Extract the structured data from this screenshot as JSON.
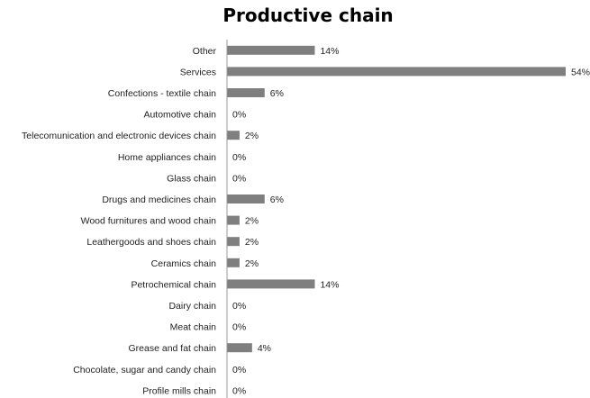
{
  "chart_data": {
    "type": "bar",
    "orientation": "horizontal",
    "title": "Productive chain",
    "xlabel": "",
    "ylabel": "",
    "xlim": [
      0,
      54
    ],
    "grid": false,
    "legend": "none",
    "bar_color": "#7f7f7f",
    "categories": [
      "Other",
      "Services",
      "Confections - textile chain",
      "Automotive chain",
      "Telecomunication and electronic devices chain",
      "Home appliances chain",
      "Glass chain",
      "Drugs and medicines chain",
      "Wood furnitures and wood chain",
      "Leathergoods and shoes chain",
      "Ceramics chain",
      "Petrochemical chain",
      "Dairy chain",
      "Meat chain",
      "Grease and fat chain",
      "Chocolate, sugar and candy chain",
      "Profile mills chain"
    ],
    "values": [
      14,
      54,
      6,
      0,
      2,
      0,
      0,
      6,
      2,
      2,
      2,
      14,
      0,
      0,
      4,
      0,
      0
    ],
    "value_labels": [
      "14%",
      "54%",
      "6%",
      "0%",
      "2%",
      "0%",
      "0%",
      "6%",
      "2%",
      "2%",
      "2%",
      "14%",
      "0%",
      "0%",
      "4%",
      "0%",
      "0%"
    ]
  }
}
